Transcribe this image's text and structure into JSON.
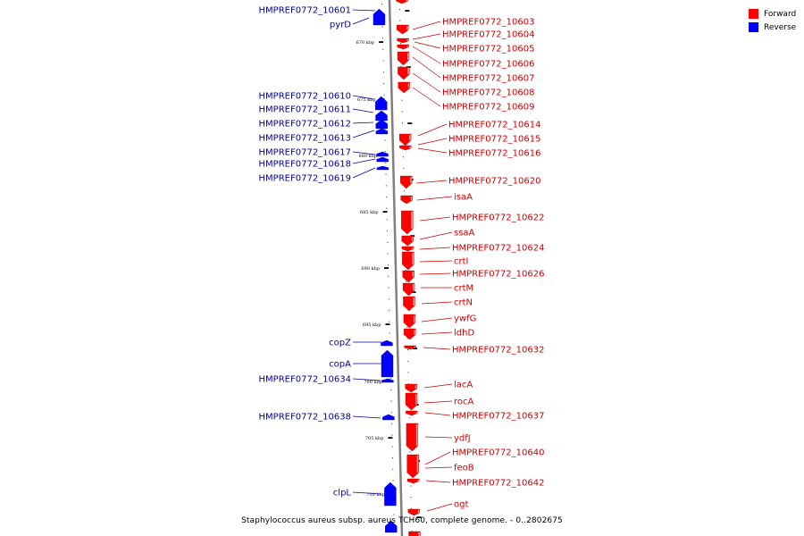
{
  "legend": {
    "items": [
      {
        "label": "Forward",
        "color": "#ff0000"
      },
      {
        "label": "Reverse",
        "color": "#0000ff"
      }
    ]
  },
  "caption": "Staphylococcus aureus subsp. aureus TCH60, complete genome. - 0..2802675",
  "colors": {
    "forward": "#ff0000",
    "reverse": "#0000ff",
    "backbone": "#808080",
    "label_forward": "#cc0000",
    "label_reverse": "#000099"
  },
  "tick_labels": [
    "670 kbp",
    "675 kbp",
    "680 kbp",
    "685 kbp",
    "690 kbp",
    "695 kbp",
    "700 kbp",
    "705 kbp",
    "710 kbp"
  ],
  "reverse_genes": [
    "HMPREF0772_10601",
    "pyrD",
    "HMPREF0772_10610",
    "HMPREF0772_10611",
    "HMPREF0772_10612",
    "HMPREF0772_10613",
    "HMPREF0772_10617",
    "HMPREF0772_10618",
    "HMPREF0772_10619",
    "copZ",
    "copA",
    "HMPREF0772_10634",
    "HMPREF0772_10638",
    "clpL"
  ],
  "forward_genes": [
    "HMPREF0772_10603",
    "HMPREF0772_10604",
    "HMPREF0772_10605",
    "HMPREF0772_10606",
    "HMPREF0772_10607",
    "HMPREF0772_10608",
    "HMPREF0772_10609",
    "HMPREF0772_10614",
    "HMPREF0772_10615",
    "HMPREF0772_10616",
    "HMPREF0772_10620",
    "isaA",
    "HMPREF0772_10622",
    "ssaA",
    "HMPREF0772_10624",
    "crtI",
    "HMPREF0772_10626",
    "crtM",
    "crtN",
    "ywfG",
    "ldhD",
    "HMPREF0772_10632",
    "lacA",
    "rocA",
    "HMPREF0772_10637",
    "ydfJ",
    "HMPREF0772_10640",
    "feoB",
    "HMPREF0772_10642",
    "ogt"
  ]
}
